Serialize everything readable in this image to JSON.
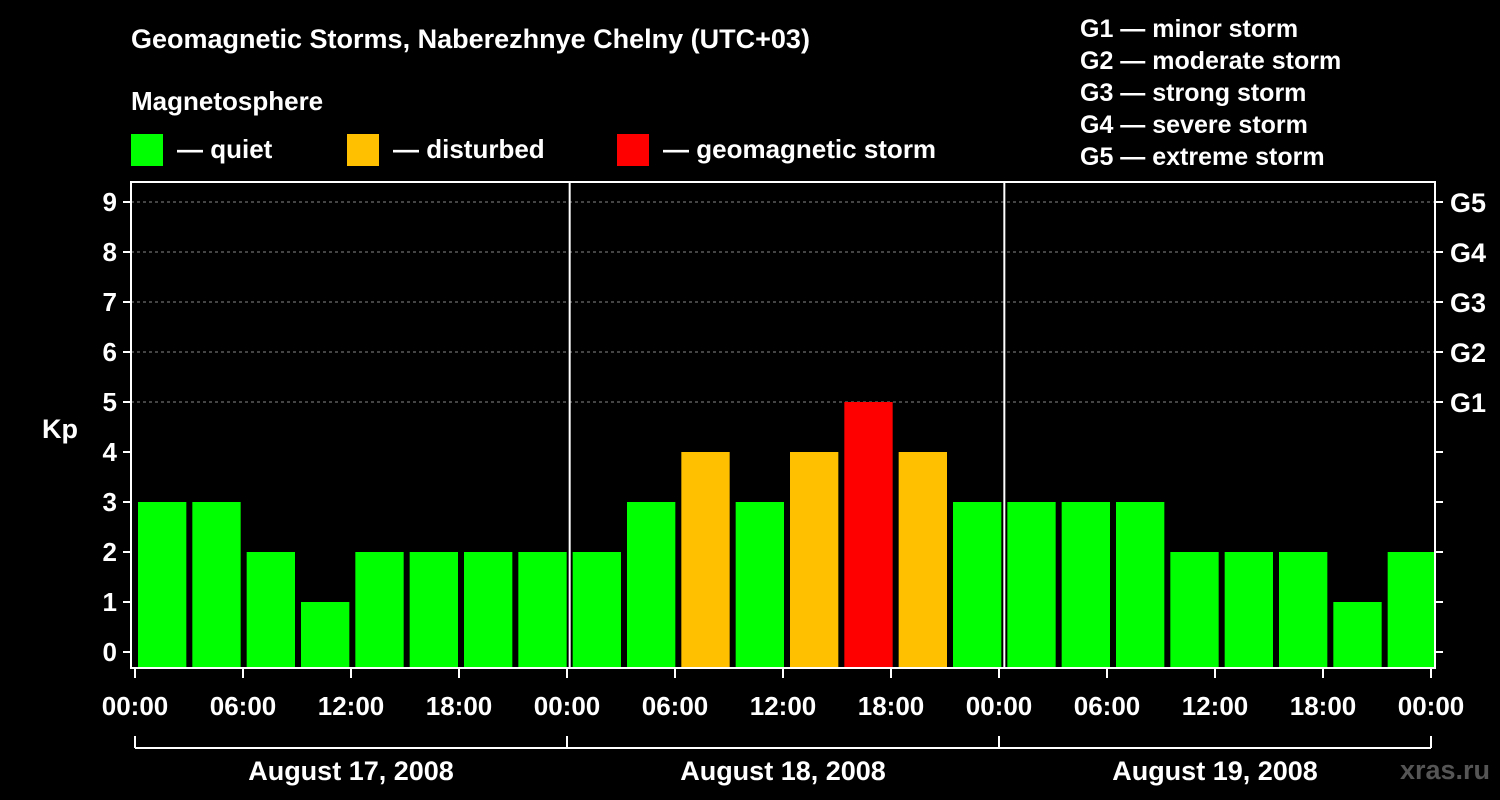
{
  "title": "Geomagnetic Storms, Naberezhnye Chelny (UTC+03)",
  "subtitle": "Magnetosphere",
  "legend": [
    {
      "label": "— quiet",
      "color": "#00ff00"
    },
    {
      "label": "— disturbed",
      "color": "#ffc000"
    },
    {
      "label": "— geomagnetic storm",
      "color": "#ff0000"
    }
  ],
  "g_scale": [
    "G1 — minor storm",
    "G2 — moderate storm",
    "G3 — strong storm",
    "G4 — severe storm",
    "G5 — extreme storm"
  ],
  "watermark": "xras.ru",
  "chart_data": {
    "type": "bar",
    "ylabel": "Kp",
    "ylim": [
      0,
      9
    ],
    "yticks": [
      "0",
      "1",
      "2",
      "3",
      "4",
      "5",
      "6",
      "7",
      "8",
      "9"
    ],
    "right_ticks": [
      {
        "kp": 5,
        "label": "G1"
      },
      {
        "kp": 6,
        "label": "G2"
      },
      {
        "kp": 7,
        "label": "G3"
      },
      {
        "kp": 8,
        "label": "G4"
      },
      {
        "kp": 9,
        "label": "G5"
      }
    ],
    "xtick_labels": [
      "00:00",
      "06:00",
      "12:00",
      "18:00",
      "00:00",
      "06:00",
      "12:00",
      "18:00",
      "00:00",
      "06:00",
      "12:00",
      "18:00",
      "00:00"
    ],
    "days": [
      "August 17, 2008",
      "August 18, 2008",
      "August 19, 2008"
    ],
    "interval_hours": 3,
    "grid": "dashed horizontal at 5-9",
    "values": [
      3,
      3,
      2,
      1,
      2,
      2,
      2,
      2,
      2,
      3,
      4,
      3,
      4,
      5,
      4,
      3,
      3,
      3,
      3,
      2,
      2,
      2,
      1,
      2
    ],
    "color_scale": {
      "quiet": "#00ff00",
      "disturbed": "#ffc000",
      "storm": "#ff0000"
    }
  }
}
